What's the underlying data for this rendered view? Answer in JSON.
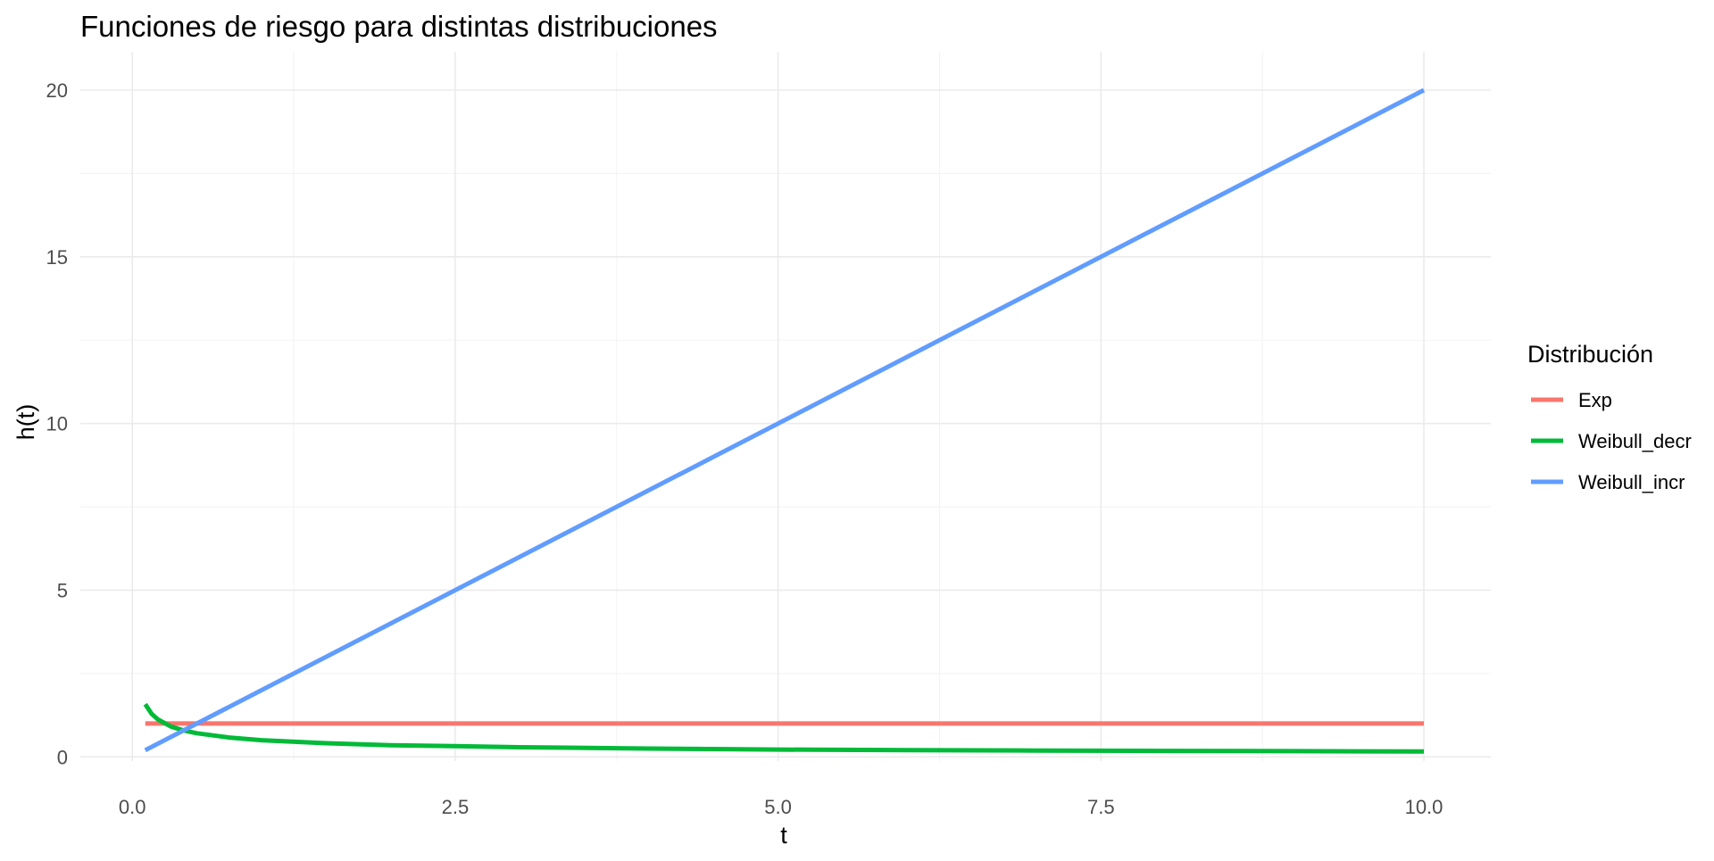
{
  "chart_data": {
    "type": "line",
    "title": "Funciones de riesgo para distintas distribuciones",
    "xlabel": "t",
    "ylabel": "h(t)",
    "xlim": [
      0.1,
      10.0
    ],
    "ylim": [
      0.1,
      20.0
    ],
    "x_ticks": [
      0.0,
      2.5,
      5.0,
      7.5,
      10.0
    ],
    "x_tick_labels": [
      "0.0",
      "2.5",
      "5.0",
      "7.5",
      "10.0"
    ],
    "y_ticks": [
      0,
      5,
      10,
      15,
      20
    ],
    "y_tick_labels": [
      "0",
      "5",
      "10",
      "15",
      "20"
    ],
    "grid": true,
    "legend": {
      "title": "Distribución",
      "position": "right"
    },
    "series": [
      {
        "name": "Exp",
        "color": "#F8766D",
        "x": [
          0.1,
          10.0
        ],
        "y": [
          1.0,
          1.0
        ]
      },
      {
        "name": "Weibull_decr",
        "color": "#00BA38",
        "x": [
          0.1,
          0.15,
          0.2,
          0.3,
          0.4,
          0.5,
          0.75,
          1.0,
          1.5,
          2.0,
          2.5,
          3.0,
          4.0,
          5.0,
          6.0,
          7.0,
          8.0,
          9.0,
          10.0
        ],
        "y": [
          1.58,
          1.29,
          1.12,
          0.91,
          0.79,
          0.71,
          0.58,
          0.5,
          0.41,
          0.35,
          0.32,
          0.29,
          0.25,
          0.22,
          0.2,
          0.19,
          0.18,
          0.17,
          0.16
        ]
      },
      {
        "name": "Weibull_incr",
        "color": "#619CFF",
        "x": [
          0.1,
          10.0
        ],
        "y": [
          0.2,
          20.0
        ]
      }
    ]
  }
}
